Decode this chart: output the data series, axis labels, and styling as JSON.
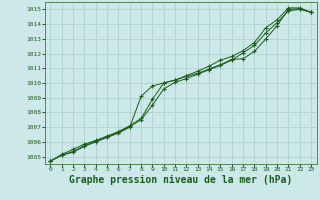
{
  "bg_color": "#cce8e8",
  "grid_color": "#aacccc",
  "line_color": "#1a5c1a",
  "marker_color": "#1a5c1a",
  "xlabel": "Graphe pression niveau de la mer (hPa)",
  "xlabel_fontsize": 7,
  "ylabel_ticks": [
    1005,
    1006,
    1007,
    1008,
    1009,
    1010,
    1011,
    1012,
    1013,
    1014,
    1015
  ],
  "xlim": [
    -0.5,
    23.5
  ],
  "ylim": [
    1004.5,
    1015.5
  ],
  "xticks": [
    0,
    1,
    2,
    3,
    4,
    5,
    6,
    7,
    8,
    9,
    10,
    11,
    12,
    13,
    14,
    15,
    16,
    17,
    18,
    19,
    20,
    21,
    22,
    23
  ],
  "series": [
    [
      1004.7,
      1005.1,
      1005.3,
      1005.7,
      1006.0,
      1006.3,
      1006.6,
      1007.0,
      1009.1,
      1009.8,
      1010.0,
      1010.2,
      1010.45,
      1010.65,
      1010.95,
      1011.25,
      1011.6,
      1011.65,
      1012.15,
      1013.0,
      1013.9,
      1015.0,
      1015.05,
      1014.8
    ],
    [
      1004.7,
      1005.1,
      1005.35,
      1005.75,
      1006.05,
      1006.35,
      1006.65,
      1007.05,
      1007.5,
      1008.5,
      1009.6,
      1010.05,
      1010.3,
      1010.6,
      1010.9,
      1011.2,
      1011.55,
      1012.05,
      1012.55,
      1013.4,
      1014.1,
      1014.9,
      1015.0,
      1014.8
    ],
    [
      1004.7,
      1005.15,
      1005.5,
      1005.85,
      1006.1,
      1006.4,
      1006.7,
      1007.1,
      1007.6,
      1008.9,
      1010.0,
      1010.2,
      1010.5,
      1010.8,
      1011.15,
      1011.55,
      1011.8,
      1012.2,
      1012.75,
      1013.75,
      1014.3,
      1015.1,
      1015.1,
      1014.8
    ]
  ]
}
